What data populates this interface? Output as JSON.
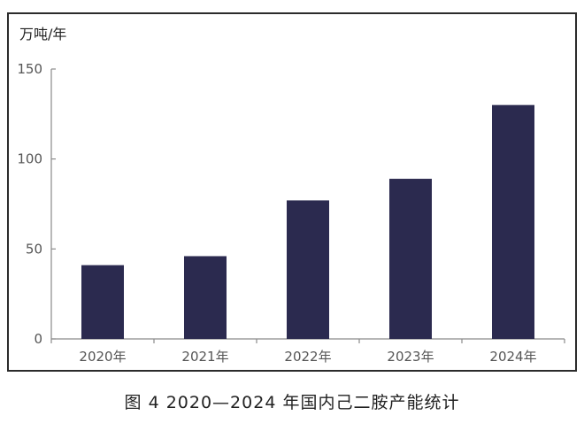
{
  "caption": "图 4  2020—2024 年国内己二胺产能统计",
  "chart_data": {
    "type": "bar",
    "unit_label": "万吨/年",
    "categories": [
      "2020年",
      "2021年",
      "2022年",
      "2023年",
      "2024年"
    ],
    "values": [
      41,
      46,
      77,
      89,
      130
    ],
    "ylim": [
      0,
      150
    ],
    "yticks": [
      0,
      50,
      100,
      150
    ],
    "bar_color": "#2b2a4f",
    "grid": false,
    "legend": "none"
  }
}
